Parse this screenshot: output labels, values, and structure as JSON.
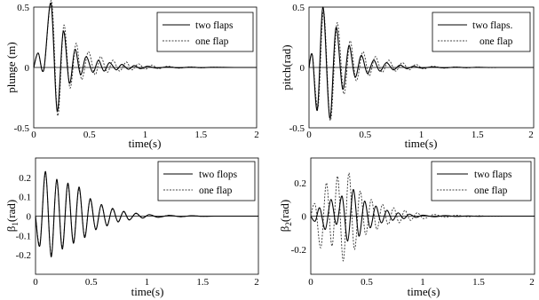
{
  "chart_data": [
    {
      "type": "line",
      "xlabel": "time(s)",
      "ylabel": "plunge (m)",
      "xlim": [
        0,
        2
      ],
      "ylim": [
        -0.5,
        0.5
      ],
      "xticks": [
        "0",
        "0.5",
        "1",
        "1.5",
        "2"
      ],
      "yticks": [
        "0.5",
        "0",
        "-0.5"
      ],
      "ytick_values": [
        0.5,
        0,
        -0.5
      ],
      "legend_position": "top-right",
      "series": [
        {
          "name": "two flaps",
          "style": "solid",
          "x": [
            0,
            0.04,
            0.09,
            0.155,
            0.21,
            0.265,
            0.32,
            0.37,
            0.42,
            0.47,
            0.53,
            0.58,
            0.63,
            0.68,
            0.74,
            0.79,
            0.85,
            0.9,
            0.96,
            1.02,
            1.1,
            1.2,
            1.3,
            1.4,
            1.5,
            1.6,
            1.8,
            2.0
          ],
          "y": [
            0,
            0.12,
            -0.02,
            0.53,
            -0.36,
            0.3,
            -0.13,
            0.15,
            -0.06,
            0.09,
            -0.04,
            0.06,
            -0.03,
            0.04,
            -0.02,
            0.025,
            -0.015,
            0.015,
            -0.01,
            0.01,
            -0.005,
            0.004,
            -0.003,
            0.002,
            -0.001,
            0.001,
            0,
            0
          ]
        },
        {
          "name": "one flap",
          "style": "dashed",
          "x": [
            0,
            0.04,
            0.09,
            0.16,
            0.215,
            0.27,
            0.325,
            0.38,
            0.43,
            0.49,
            0.55,
            0.6,
            0.66,
            0.71,
            0.77,
            0.83,
            0.88,
            0.94,
            1.0,
            1.06,
            1.12,
            1.2,
            1.3,
            1.4,
            1.5,
            1.6,
            1.8,
            2.0
          ],
          "y": [
            0,
            0.12,
            -0.02,
            0.55,
            -0.4,
            0.35,
            -0.17,
            0.2,
            -0.1,
            0.13,
            -0.06,
            0.09,
            -0.04,
            0.06,
            -0.03,
            0.045,
            -0.02,
            0.03,
            -0.015,
            0.02,
            -0.01,
            0.01,
            -0.006,
            0.005,
            -0.003,
            0.002,
            0,
            0
          ]
        }
      ]
    },
    {
      "type": "line",
      "xlabel": "time(s)",
      "ylabel": "pitch(rad)",
      "xlim": [
        0,
        2
      ],
      "ylim": [
        -0.5,
        0.5
      ],
      "xticks": [
        "0",
        "0.5",
        "1",
        "1.5",
        "2"
      ],
      "yticks": [
        "0.5",
        "0",
        "-0.5"
      ],
      "ytick_values": [
        0.5,
        0,
        -0.5
      ],
      "legend_position": "top-right",
      "series": [
        {
          "name": "two flaps.",
          "style": "solid",
          "x": [
            0,
            0.03,
            0.075,
            0.125,
            0.185,
            0.24,
            0.3,
            0.355,
            0.41,
            0.465,
            0.52,
            0.575,
            0.63,
            0.69,
            0.75,
            0.81,
            0.87,
            0.93,
            1.0,
            1.1,
            1.2,
            1.3,
            1.4,
            1.5,
            1.6,
            1.8,
            2.0
          ],
          "y": [
            0,
            0.1,
            -0.35,
            0.5,
            -0.42,
            0.33,
            -0.18,
            0.18,
            -0.08,
            0.1,
            -0.05,
            0.06,
            -0.03,
            0.04,
            -0.02,
            0.02,
            -0.01,
            0.01,
            -0.005,
            0.004,
            -0.003,
            0.002,
            -0.001,
            0.001,
            0,
            0,
            0
          ]
        },
        {
          "name": "one flap",
          "style": "dashed",
          "x": [
            0,
            0.03,
            0.08,
            0.13,
            0.19,
            0.25,
            0.31,
            0.365,
            0.42,
            0.48,
            0.535,
            0.59,
            0.65,
            0.71,
            0.77,
            0.83,
            0.89,
            0.95,
            1.02,
            1.1,
            1.2,
            1.3,
            1.4,
            1.5,
            1.6,
            1.8,
            2.0
          ],
          "y": [
            0,
            0.1,
            -0.33,
            0.47,
            -0.44,
            0.37,
            -0.22,
            0.22,
            -0.11,
            0.13,
            -0.07,
            0.09,
            -0.04,
            0.06,
            -0.03,
            0.04,
            -0.02,
            0.025,
            -0.012,
            0.01,
            -0.006,
            0.004,
            -0.003,
            0.002,
            -0.001,
            0,
            0
          ]
        }
      ]
    },
    {
      "type": "line",
      "xlabel": "time(s)",
      "ylabel": "β1(rad)",
      "ylabel_main": "β",
      "ylabel_sub": "1",
      "ylabel_rest": "(rad)",
      "xlim": [
        0,
        2
      ],
      "ylim": [
        -0.3,
        0.3
      ],
      "xticks": [
        "0",
        "0.5",
        "1",
        "1.5",
        "2"
      ],
      "yticks": [
        "0.2",
        "0.1",
        "0",
        "-0.1",
        "-0.2"
      ],
      "ytick_values": [
        0.2,
        0.1,
        0,
        -0.1,
        -0.2
      ],
      "legend_position": "top-right",
      "series": [
        {
          "name": "two flops",
          "style": "solid",
          "x": [
            0,
            0.04,
            0.09,
            0.14,
            0.19,
            0.24,
            0.29,
            0.34,
            0.39,
            0.44,
            0.49,
            0.54,
            0.59,
            0.64,
            0.69,
            0.74,
            0.79,
            0.84,
            0.9,
            0.96,
            1.02,
            1.1,
            1.2,
            1.3,
            1.4,
            1.5,
            1.6,
            1.8,
            2.0
          ],
          "y": [
            0,
            -0.15,
            0.23,
            -0.21,
            0.19,
            -0.17,
            0.17,
            -0.14,
            0.15,
            -0.11,
            0.09,
            -0.07,
            0.06,
            -0.05,
            0.04,
            -0.03,
            0.025,
            -0.02,
            0.015,
            -0.01,
            0.008,
            -0.006,
            0.004,
            -0.003,
            0.002,
            -0.001,
            0,
            0,
            0
          ]
        },
        {
          "name": "one flap",
          "style": "dashed",
          "x": [
            0,
            0.04,
            0.09,
            0.14,
            0.19,
            0.24,
            0.29,
            0.34,
            0.39,
            0.44,
            0.49,
            0.54,
            0.59,
            0.64,
            0.69,
            0.74,
            0.79,
            0.84,
            0.9,
            0.96,
            1.02,
            1.1,
            1.2,
            1.3,
            1.4,
            1.5,
            1.6,
            1.8,
            2.0
          ],
          "y": [
            0,
            -0.14,
            0.22,
            -0.2,
            0.18,
            -0.16,
            0.16,
            -0.13,
            0.14,
            -0.1,
            0.085,
            -0.065,
            0.055,
            -0.045,
            0.035,
            -0.028,
            0.022,
            -0.018,
            0.013,
            -0.009,
            0.007,
            -0.005,
            0.004,
            -0.003,
            0.002,
            -0.001,
            0,
            0,
            0
          ]
        }
      ]
    },
    {
      "type": "line",
      "xlabel": "time(s)",
      "ylabel": "β2(rad)",
      "ylabel_main": "β",
      "ylabel_sub": "2",
      "ylabel_rest": "(rad)",
      "xlim": [
        0,
        2
      ],
      "ylim": [
        -0.35,
        0.35
      ],
      "xticks": [
        "0",
        "0.5",
        "1",
        "1.5",
        "2"
      ],
      "yticks": [
        "0.2",
        "0",
        "-0.2"
      ],
      "ytick_values": [
        0.2,
        0,
        -0.2
      ],
      "legend_position": "top-right",
      "series": [
        {
          "name": "two flaps",
          "style": "solid",
          "x": [
            0,
            0.04,
            0.08,
            0.13,
            0.18,
            0.23,
            0.28,
            0.33,
            0.38,
            0.43,
            0.48,
            0.53,
            0.58,
            0.63,
            0.68,
            0.73,
            0.78,
            0.83,
            0.88,
            0.94,
            1.0,
            1.1,
            1.2,
            1.3,
            1.4,
            1.5,
            1.6,
            1.8,
            2.0
          ],
          "y": [
            0,
            -0.03,
            0.05,
            -0.08,
            0.1,
            -0.05,
            0.12,
            -0.15,
            0.16,
            -0.12,
            0.09,
            -0.07,
            0.06,
            -0.04,
            0.035,
            -0.025,
            0.02,
            -0.015,
            0.012,
            -0.008,
            0.006,
            -0.004,
            0.003,
            -0.002,
            0.001,
            -0.001,
            0,
            0,
            0
          ]
        },
        {
          "name": "one flap",
          "style": "dashed",
          "x": [
            0,
            0.04,
            0.09,
            0.14,
            0.19,
            0.24,
            0.29,
            0.34,
            0.39,
            0.44,
            0.49,
            0.54,
            0.59,
            0.64,
            0.69,
            0.74,
            0.79,
            0.84,
            0.89,
            0.95,
            1.01,
            1.1,
            1.2,
            1.3,
            1.4,
            1.5,
            1.6,
            1.8,
            2.0
          ],
          "y": [
            0,
            0.07,
            -0.19,
            0.2,
            -0.18,
            0.24,
            -0.27,
            0.26,
            -0.2,
            0.15,
            -0.11,
            0.1,
            -0.08,
            0.07,
            -0.05,
            0.05,
            -0.04,
            0.035,
            -0.025,
            0.02,
            -0.015,
            0.01,
            -0.007,
            0.005,
            -0.003,
            0.002,
            -0.001,
            0,
            0
          ]
        }
      ]
    }
  ]
}
